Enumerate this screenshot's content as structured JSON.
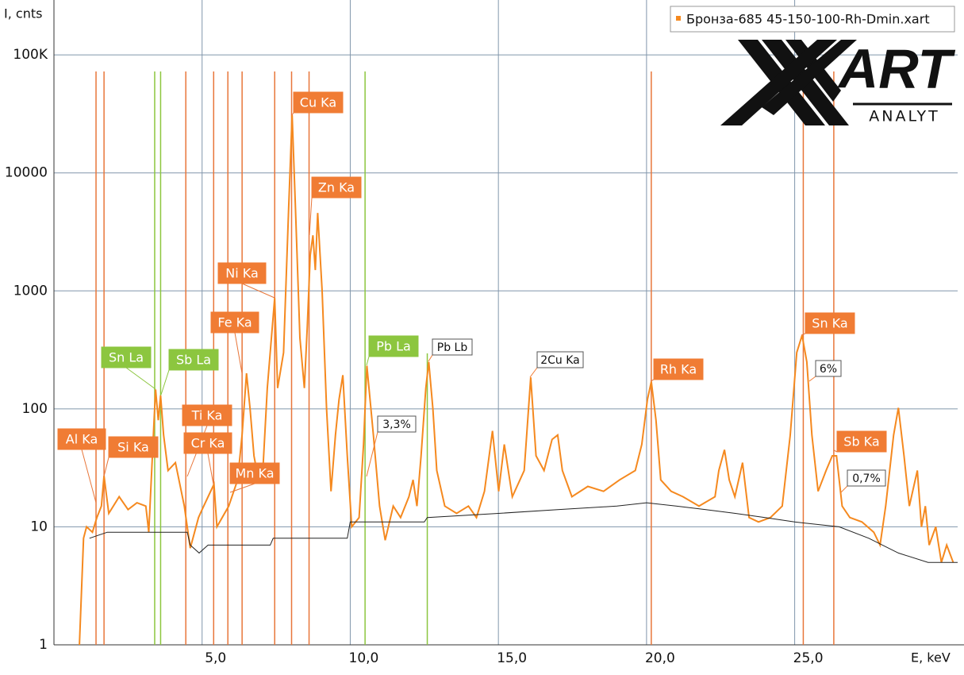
{
  "chart_data": {
    "type": "line",
    "log_y": true,
    "grid": true,
    "xlabel": "E, keV",
    "ylabel": "I, cnts",
    "xlim": [
      0,
      30.5
    ],
    "ylim": [
      1,
      250000
    ],
    "xticks": [
      {
        "value": 5,
        "label": "5,0"
      },
      {
        "value": 10,
        "label": "10,0"
      },
      {
        "value": 15,
        "label": "15,0"
      },
      {
        "value": 20,
        "label": "20,0"
      },
      {
        "value": 25,
        "label": "25,0"
      }
    ],
    "yticks": [
      1,
      10,
      100,
      1000,
      10000,
      {
        "value": 100000,
        "label": "100K"
      }
    ],
    "legend_position": "top-right",
    "logo": {
      "name": "ART",
      "tagline": "ANALYT"
    },
    "x": [
      0.86,
      1.0,
      1.1,
      1.3,
      1.45,
      1.6,
      1.69,
      1.85,
      2.2,
      2.5,
      2.8,
      3.1,
      3.2,
      3.3,
      3.38,
      3.43,
      3.52,
      3.6,
      3.7,
      3.85,
      4.1,
      4.4,
      4.6,
      4.88,
      5.0,
      5.4,
      5.5,
      5.9,
      6.2,
      6.35,
      6.35,
      6.5,
      6.62,
      6.75,
      6.9,
      7.05,
      7.2,
      7.45,
      7.55,
      7.75,
      7.92,
      8.04,
      8.15,
      8.3,
      8.45,
      8.55,
      8.65,
      8.74,
      8.82,
      8.9,
      9.05,
      9.2,
      9.35,
      9.5,
      9.62,
      9.75,
      9.9,
      10.05,
      10.3,
      10.45,
      10.56,
      10.78,
      10.99,
      11.18,
      11.45,
      11.7,
      11.98,
      12.12,
      12.25,
      12.39,
      12.55,
      12.65,
      12.79,
      12.92,
      13.19,
      13.59,
      13.99,
      14.26,
      14.53,
      14.8,
      15.01,
      15.2,
      15.47,
      15.87,
      16.09,
      16.27,
      16.54,
      16.81,
      17.0,
      17.16,
      17.48,
      18.02,
      18.55,
      19.09,
      19.62,
      19.84,
      20.03,
      20.16,
      20.32,
      20.48,
      20.83,
      21.23,
      21.77,
      22.31,
      22.44,
      22.63,
      22.79,
      22.98,
      23.24,
      23.46,
      23.78,
      24.18,
      24.58,
      24.85,
      25.07,
      25.25,
      25.41,
      25.58,
      25.79,
      26.06,
      26.27,
      26.41,
      26.6,
      26.86,
      27.27,
      27.67,
      27.88,
      28.07,
      28.34,
      28.5,
      28.69,
      28.87,
      29.14,
      29.28,
      29.41,
      29.54,
      29.76,
      29.95,
      30.13,
      30.35
    ],
    "series": [
      {
        "name": "Бронза-685  45-150-100-Rh-Dmin.xart",
        "color": "#f5891f",
        "values": [
          1,
          8,
          10,
          9,
          12,
          15,
          27,
          13,
          18,
          14,
          16,
          15,
          9,
          30,
          80,
          146,
          80,
          130,
          60,
          30,
          35,
          15,
          6.6,
          12,
          14,
          23,
          10,
          15,
          25,
          60,
          60,
          200,
          100,
          40,
          25,
          30,
          150,
          870,
          150,
          300,
          5000,
          30900,
          5000,
          400,
          150,
          500,
          2000,
          2960,
          1500,
          4570,
          1000,
          100,
          20,
          60,
          120,
          193,
          40,
          10,
          12,
          50,
          232,
          60,
          15,
          7.7,
          15,
          12,
          18,
          25,
          15,
          40,
          150,
          250,
          100,
          30,
          15,
          13,
          15,
          12,
          20,
          65,
          20,
          50,
          18,
          30,
          185,
          40,
          30,
          55,
          60,
          30,
          18,
          22,
          20,
          25,
          30,
          50,
          120,
          170,
          80,
          25,
          20,
          18,
          15,
          18,
          30,
          45,
          25,
          18,
          35,
          12,
          11,
          12,
          15,
          60,
          300,
          420,
          250,
          60,
          20,
          30,
          40,
          40,
          15,
          12,
          11,
          9,
          7,
          15,
          60,
          102,
          40,
          15,
          30,
          10,
          15,
          7,
          10,
          5,
          7,
          5
        ]
      },
      {
        "color": "#222222",
        "x": [
          1.2,
          1.8,
          4.5,
          4.6,
          4.9,
          5.2,
          7.3,
          7.4,
          9.9,
          10.0,
          12.5,
          12.6,
          15,
          17,
          19,
          20,
          21,
          22,
          23,
          24,
          25,
          26.5,
          27.5,
          28.5,
          29.5,
          30.5
        ],
        "values": [
          8,
          9,
          9,
          7,
          6,
          7,
          7,
          8,
          8,
          11,
          11,
          12,
          13,
          14,
          15,
          16,
          15,
          14,
          13,
          12,
          11,
          10,
          8,
          6,
          5,
          5
        ]
      }
    ],
    "annotations": [
      {
        "text": "Al Ka",
        "energy": 1.42,
        "style": "orange"
      },
      {
        "text": "Si Ka",
        "energy": 1.69,
        "style": "orange"
      },
      {
        "text": "Sn La",
        "energy": 3.4,
        "style": "green"
      },
      {
        "text": "Sb La",
        "energy": 3.6,
        "style": "green"
      },
      {
        "text": "Ti Ka",
        "energy": 4.45,
        "style": "orange"
      },
      {
        "text": "Cr Ka",
        "energy": 5.39,
        "style": "orange"
      },
      {
        "text": "Mn Ka",
        "energy": 5.87,
        "style": "orange"
      },
      {
        "text": "Fe Ka",
        "energy": 6.35,
        "style": "orange"
      },
      {
        "text": "Ni Ka",
        "energy": 7.45,
        "style": "orange"
      },
      {
        "text": "Cu Ka",
        "energy": 8.02,
        "style": "orange"
      },
      {
        "text": "Zn Ka",
        "energy": 8.61,
        "style": "orange"
      },
      {
        "text": "Pb La",
        "energy": 10.5,
        "style": "green"
      },
      {
        "text": "Pb Lb",
        "energy": 12.6,
        "style": "white"
      },
      {
        "text": "2Cu Ka",
        "style": "white"
      },
      {
        "text": "Rh Ka",
        "energy": 20.16,
        "style": "orange"
      },
      {
        "text": "Sn Ka",
        "energy": 25.29,
        "style": "orange"
      },
      {
        "text": "Sb Ka",
        "energy": 26.32,
        "style": "orange"
      },
      {
        "text": "3,3%",
        "style": "white"
      },
      {
        "text": "6%",
        "style": "white"
      },
      {
        "text": "0,7%",
        "style": "white"
      }
    ]
  }
}
